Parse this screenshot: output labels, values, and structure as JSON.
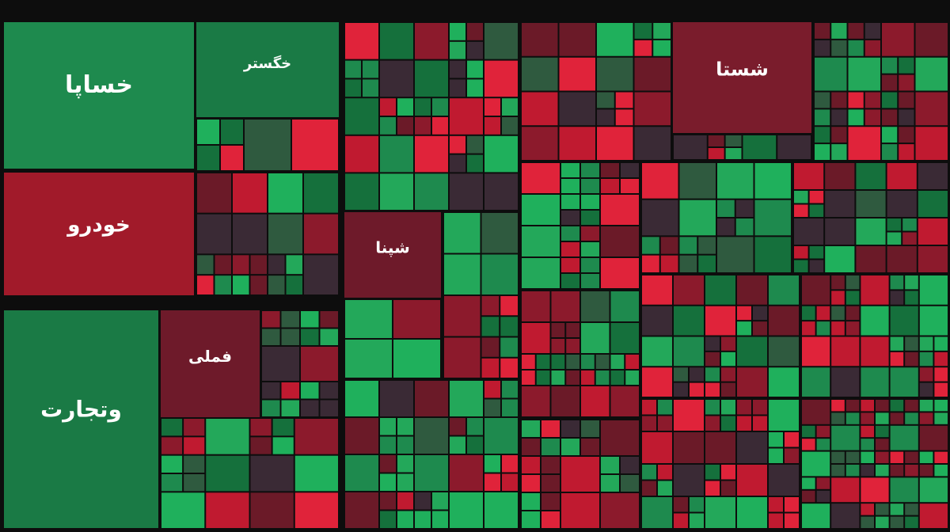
{
  "tiles": [
    {
      "label": "خساپا"
    },
    {
      "label": "خگستر"
    },
    {
      "label": "خودرو"
    },
    {
      "label": "وتجارت"
    },
    {
      "label": "فملی"
    },
    {
      "label": "شستا"
    },
    {
      "label": "شپنا"
    }
  ]
}
